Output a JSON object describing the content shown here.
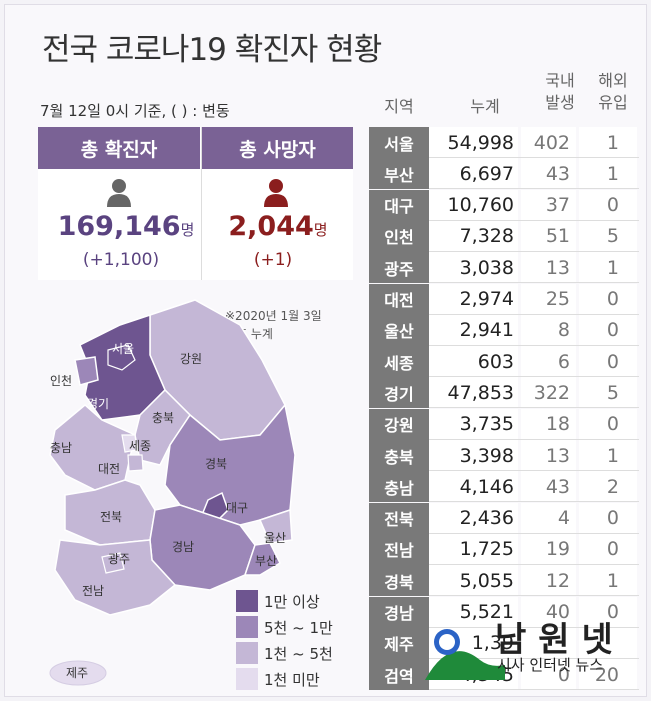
{
  "title": "전국 코로나19 확진자 현황",
  "subtitle": "7월 12일 0시 기준, ( ) : 변동",
  "summary": {
    "confirmed_label": "총 확진자",
    "confirmed_value": "169,146",
    "confirmed_unit": "명",
    "confirmed_change": "(+1,100)",
    "deaths_label": "총 사망자",
    "deaths_value": "2,044",
    "deaths_unit": "명",
    "deaths_change": "(+1)"
  },
  "note_line1": "※2020년 1월 3일",
  "note_line2": "이후 누계",
  "map_labels": {
    "seoul": "서울",
    "incheon": "인천",
    "gyeonggi": "경기",
    "gangwon": "강원",
    "chungbuk": "충북",
    "chungnam": "충남",
    "sejong": "세종",
    "daejeon": "대전",
    "gyeongbuk": "경북",
    "daegu": "대구",
    "jeonbuk": "전북",
    "ulsan": "울산",
    "busan": "부산",
    "gyeongnam": "경남",
    "gwangju": "광주",
    "jeonnam": "전남",
    "jeju": "제주"
  },
  "legend": [
    {
      "label": "1만 이상",
      "color": "#6e5590"
    },
    {
      "label": "5천 ~ 1만",
      "color": "#9c87b8"
    },
    {
      "label": "1천 ~ 5천",
      "color": "#c4b7d6"
    },
    {
      "label": "1천 미만",
      "color": "#e4dcee"
    }
  ],
  "table_headers": {
    "region": "지역",
    "cumulative": "누계",
    "domestic_line1": "국내",
    "domestic_line2": "발생",
    "imported_line1": "해외",
    "imported_line2": "유입"
  },
  "colors": {
    "accent": "#7a6295",
    "death": "#8b1e1e",
    "region_bg": "#797979"
  },
  "chart_data": {
    "type": "table",
    "title": "전국 코로나19 확진자 현황",
    "columns": [
      "지역",
      "누계",
      "국내 발생",
      "해외 유입"
    ],
    "rows": [
      {
        "region": "서울",
        "cumulative": "54,998",
        "domestic": "402",
        "imported": "1"
      },
      {
        "region": "부산",
        "cumulative": "6,697",
        "domestic": "43",
        "imported": "1"
      },
      {
        "region": "대구",
        "cumulative": "10,760",
        "domestic": "37",
        "imported": "0"
      },
      {
        "region": "인천",
        "cumulative": "7,328",
        "domestic": "51",
        "imported": "5"
      },
      {
        "region": "광주",
        "cumulative": "3,038",
        "domestic": "13",
        "imported": "1"
      },
      {
        "region": "대전",
        "cumulative": "2,974",
        "domestic": "25",
        "imported": "0"
      },
      {
        "region": "울산",
        "cumulative": "2,941",
        "domestic": "8",
        "imported": "0"
      },
      {
        "region": "세종",
        "cumulative": "603",
        "domestic": "6",
        "imported": "0"
      },
      {
        "region": "경기",
        "cumulative": "47,853",
        "domestic": "322",
        "imported": "5"
      },
      {
        "region": "강원",
        "cumulative": "3,735",
        "domestic": "18",
        "imported": "0"
      },
      {
        "region": "충북",
        "cumulative": "3,398",
        "domestic": "13",
        "imported": "1"
      },
      {
        "region": "충남",
        "cumulative": "4,146",
        "domestic": "43",
        "imported": "2"
      },
      {
        "region": "전북",
        "cumulative": "2,436",
        "domestic": "4",
        "imported": "0"
      },
      {
        "region": "전남",
        "cumulative": "1,725",
        "domestic": "19",
        "imported": "0"
      },
      {
        "region": "경북",
        "cumulative": "5,055",
        "domestic": "12",
        "imported": "1"
      },
      {
        "region": "경남",
        "cumulative": "5,521",
        "domestic": "40",
        "imported": "0"
      },
      {
        "region": "제주",
        "cumulative": "1,39",
        "domestic": "",
        "imported": ""
      },
      {
        "region": "검역",
        "cumulative": "4,545",
        "domestic": "0",
        "imported": "20"
      }
    ]
  },
  "logo": {
    "name": "남원넷",
    "tagline": "시사 인터넷 뉴스"
  }
}
